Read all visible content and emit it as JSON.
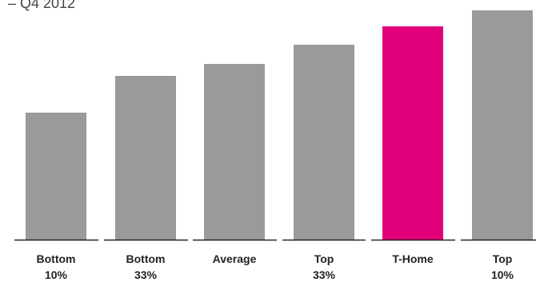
{
  "chart_data": {
    "type": "bar",
    "subtitle": "– Q4 2012",
    "categories": [
      [
        "Bottom",
        "10%"
      ],
      [
        "Bottom",
        "33%"
      ],
      [
        "Average"
      ],
      [
        "Top",
        "33%"
      ],
      [
        "T-Home"
      ],
      [
        "Top",
        "10%"
      ]
    ],
    "values": [
      159,
      205,
      220,
      244,
      267,
      287
    ],
    "ylim": [
      0,
      290
    ],
    "colors": {
      "default": "#9a9b99",
      "highlight": "#e2007a",
      "axis": "#222222"
    },
    "highlight_category": "T-Home",
    "grid": false,
    "legend": "none"
  }
}
